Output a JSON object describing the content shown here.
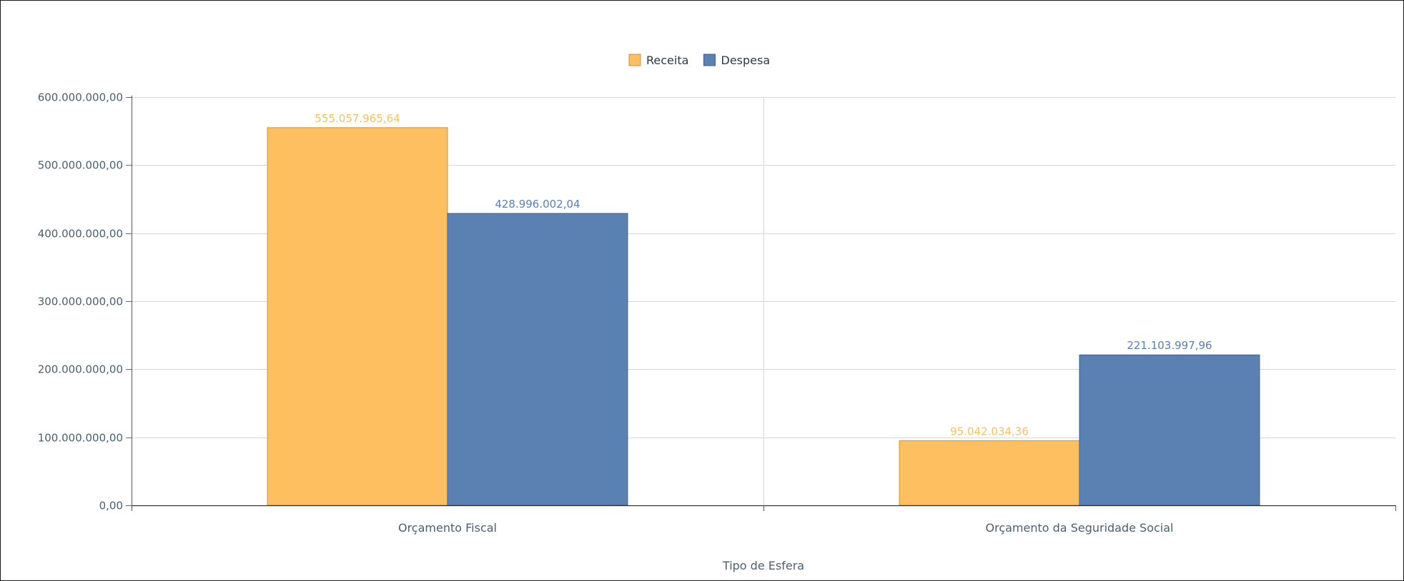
{
  "chart_data": {
    "type": "bar",
    "title": "",
    "xlabel": "Tipo de Esfera",
    "ylabel": "",
    "categories": [
      "Orçamento Fiscal",
      "Orçamento da Seguridade Social"
    ],
    "series": [
      {
        "name": "Receita",
        "color": "#FDBF5F",
        "stroke": "#C8963C",
        "values": [
          555057965.64,
          95042034.36
        ],
        "labels": [
          "555.057.965,64",
          "95.042.034,36"
        ]
      },
      {
        "name": "Despesa",
        "color": "#5B80B2",
        "stroke": "#40608C",
        "values": [
          428996002.04,
          221103997.96
        ],
        "labels": [
          "428.996.002,04",
          "221.103.997,96"
        ]
      }
    ],
    "ylim": [
      0,
      600000000
    ],
    "yticks": [
      {
        "value": 0,
        "label": "0,00"
      },
      {
        "value": 100000000,
        "label": "100.000.000,00"
      },
      {
        "value": 200000000,
        "label": "200.000.000,00"
      },
      {
        "value": 300000000,
        "label": "300.000.000,00"
      },
      {
        "value": 400000000,
        "label": "400.000.000,00"
      },
      {
        "value": 500000000,
        "label": "500.000.000,00"
      },
      {
        "value": 600000000,
        "label": "600.000.000,00"
      }
    ],
    "grid": true,
    "legend_position": "top-center"
  }
}
